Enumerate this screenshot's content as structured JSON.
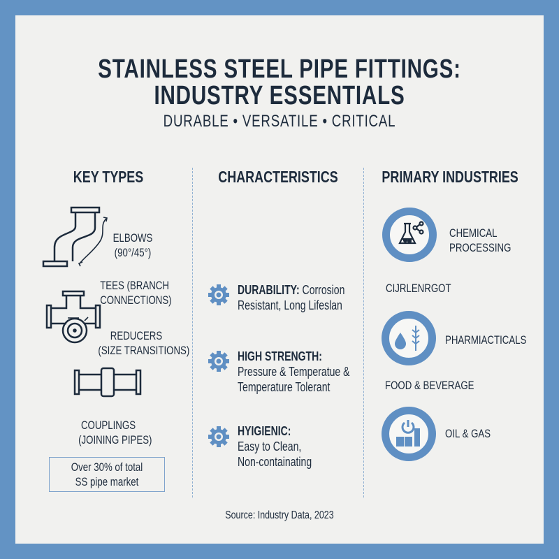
{
  "header": {
    "title_line1": "STAINLESS STEEL PIPE FITTINGS:",
    "title_line2": "INDUSTRY ESSENTIALS",
    "subtitle": "DURABLE • VERSATILE • CRITICAL"
  },
  "columns": {
    "key_types": {
      "heading": "KEY TYPES",
      "items": [
        {
          "label1": "ELBOWS",
          "label2": "(90°/45°)",
          "icon": "elbow-pipe-icon"
        },
        {
          "label1": "TEES (BRANCH",
          "label2": "CONNECTIONS)",
          "icon": "tee-pipe-icon"
        },
        {
          "label1": "REDUCERS",
          "label2": "(SIZE TRANSITIONS)",
          "icon": "reducer-icon"
        },
        {
          "label1": "COUPLINGS",
          "label2": "(JOINING PIPES)",
          "icon": "coupling-icon"
        }
      ],
      "callout_line1": "Over 30% of total",
      "callout_line2": "SS pipe market"
    },
    "characteristics": {
      "heading": "CHARACTERISTICS",
      "items": [
        {
          "title": "DURABILITY:",
          "line1": " Corrosion",
          "line2": "Resistant, Long Lifeslan"
        },
        {
          "title": "HIGH STRENGTH:",
          "line1": "Pressure & Temperatue &",
          "line2": "Temperature Tolerant"
        },
        {
          "title": "HYIGIENIC:",
          "line1": "Easy to Clean,",
          "line2": "Non-containating"
        }
      ]
    },
    "industries": {
      "heading": "PRIMARY INDUSTRIES",
      "items": [
        {
          "line1": "CHEMICAL",
          "line2": "PROCESSING",
          "icon": "flask-icon"
        },
        {
          "line1": "CIJRLENRGOT"
        },
        {
          "line1": "PHARMIACTICALS",
          "icon": "drop-wheat-icon"
        },
        {
          "line1": "FOOD & BEVERAGE"
        },
        {
          "line1": "OIL & GAS",
          "icon": "factory-icon"
        }
      ]
    }
  },
  "footer": {
    "source": "Source: Industry Data, 2023"
  },
  "colors": {
    "border": "#6393c4",
    "accent": "#5f8fc3",
    "text": "#1d2b3c",
    "panel": "#f1f1ef"
  }
}
